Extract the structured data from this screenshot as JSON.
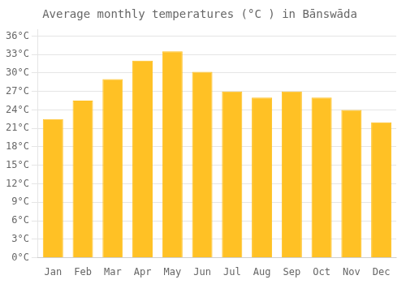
{
  "chart_data": {
    "type": "bar",
    "title": "Average monthly temperatures (°C ) in Bānswāda",
    "categories": [
      "Jan",
      "Feb",
      "Mar",
      "Apr",
      "May",
      "Jun",
      "Jul",
      "Aug",
      "Sep",
      "Oct",
      "Nov",
      "Dec"
    ],
    "values": [
      22.5,
      25.5,
      29.0,
      32.0,
      33.5,
      30.2,
      27.0,
      26.0,
      27.0,
      26.0,
      24.0,
      22.0
    ],
    "color": "#FFC125",
    "ylim": [
      0,
      37
    ],
    "yticks": [
      {
        "value": 0,
        "label": "0°C"
      },
      {
        "value": 3,
        "label": "3°C"
      },
      {
        "value": 6,
        "label": "6°C"
      },
      {
        "value": 9,
        "label": "9°C"
      },
      {
        "value": 12,
        "label": "12°C"
      },
      {
        "value": 15,
        "label": "15°C"
      },
      {
        "value": 18,
        "label": "18°C"
      },
      {
        "value": 21,
        "label": "21°C"
      },
      {
        "value": 24,
        "label": "24°C"
      },
      {
        "value": 27,
        "label": "27°C"
      },
      {
        "value": 30,
        "label": "30°C"
      },
      {
        "value": 33,
        "label": "33°C"
      },
      {
        "value": 36,
        "label": "36°C"
      }
    ],
    "grid": true
  }
}
